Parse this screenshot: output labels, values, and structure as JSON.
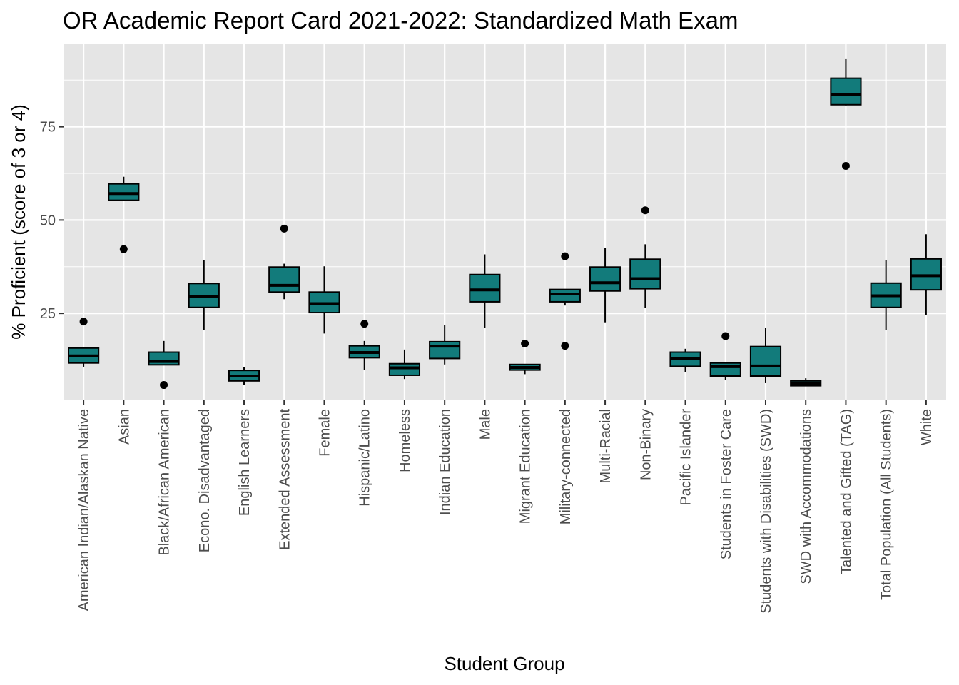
{
  "chart_data": {
    "type": "box",
    "title": "OR Academic Report Card 2021-2022: Standardized Math Exam",
    "xlabel": "Student Group",
    "ylabel": "% Proficient (score of 3 or 4)",
    "ylim": [
      1.7,
      97.3
    ],
    "yticks": [
      25,
      50,
      75
    ],
    "grid": true,
    "fill_color": "#127b7b",
    "panel_color": "#e5e5e5",
    "categories": [
      "American Indian/Alaskan Native",
      "Asian",
      "Black/African American",
      "Econo. Disadvantaged",
      "English Learners",
      "Extended Assessment",
      "Female",
      "Hispanic/Latino",
      "Homeless",
      "Indian Education",
      "Male",
      "Migrant Education",
      "Military-connected",
      "Multi-Racial",
      "Non-Binary",
      "Pacific Islander",
      "Students in Foster Care",
      "Students with Disabilities (SWD)",
      "SWD with Accommodations",
      "Talented and Gifted (TAG)",
      "Total Population (All Students)",
      "White"
    ],
    "boxes": [
      {
        "whisker_low": 10.7,
        "q1": 11.7,
        "median": 13.6,
        "q3": 15.7,
        "whisker_high": 15.7,
        "outliers": [
          22.8
        ]
      },
      {
        "whisker_low": 55.3,
        "q1": 55.3,
        "median": 57.1,
        "q3": 59.7,
        "whisker_high": 61.6,
        "outliers": [
          42.2
        ]
      },
      {
        "whisker_low": 11.2,
        "q1": 11.2,
        "median": 12.1,
        "q3": 14.6,
        "whisker_high": 17.6,
        "outliers": [
          5.8
        ]
      },
      {
        "whisker_low": 20.5,
        "q1": 26.6,
        "median": 29.6,
        "q3": 33.0,
        "whisker_high": 39.2,
        "outliers": []
      },
      {
        "whisker_low": 5.9,
        "q1": 6.9,
        "median": 8.2,
        "q3": 9.7,
        "whisker_high": 10.5,
        "outliers": []
      },
      {
        "whisker_low": 28.8,
        "q1": 30.7,
        "median": 32.5,
        "q3": 37.4,
        "whisker_high": 38.3,
        "outliers": [
          47.7
        ]
      },
      {
        "whisker_low": 19.6,
        "q1": 25.2,
        "median": 27.6,
        "q3": 30.7,
        "whisker_high": 37.6,
        "outliers": []
      },
      {
        "whisker_low": 9.9,
        "q1": 13.1,
        "median": 14.5,
        "q3": 16.3,
        "whisker_high": 17.6,
        "outliers": [
          22.2
        ]
      },
      {
        "whisker_low": 7.4,
        "q1": 8.4,
        "median": 10.4,
        "q3": 11.5,
        "whisker_high": 15.3,
        "outliers": []
      },
      {
        "whisker_low": 11.3,
        "q1": 12.9,
        "median": 16.2,
        "q3": 17.4,
        "whisker_high": 21.8,
        "outliers": []
      },
      {
        "whisker_low": 21.1,
        "q1": 28.1,
        "median": 31.3,
        "q3": 35.4,
        "whisker_high": 40.8,
        "outliers": []
      },
      {
        "whisker_low": 8.7,
        "q1": 9.8,
        "median": 10.5,
        "q3": 11.3,
        "whisker_high": 11.3,
        "outliers": [
          16.9
        ]
      },
      {
        "whisker_low": 27.1,
        "q1": 28.1,
        "median": 30.2,
        "q3": 31.4,
        "whisker_high": 31.4,
        "outliers": [
          40.3,
          16.3
        ]
      },
      {
        "whisker_low": 22.6,
        "q1": 31.0,
        "median": 33.2,
        "q3": 37.4,
        "whisker_high": 42.5,
        "outliers": []
      },
      {
        "whisker_low": 26.5,
        "q1": 31.6,
        "median": 34.3,
        "q3": 39.5,
        "whisker_high": 43.5,
        "outliers": [
          52.6
        ]
      },
      {
        "whisker_low": 9.2,
        "q1": 10.8,
        "median": 12.9,
        "q3": 14.6,
        "whisker_high": 15.5,
        "outliers": []
      },
      {
        "whisker_low": 7.2,
        "q1": 8.2,
        "median": 10.7,
        "q3": 11.7,
        "whisker_high": 11.7,
        "outliers": [
          18.9
        ]
      },
      {
        "whisker_low": 6.3,
        "q1": 8.2,
        "median": 10.9,
        "q3": 16.1,
        "whisker_high": 21.2,
        "outliers": []
      },
      {
        "whisker_low": 5.6,
        "q1": 5.6,
        "median": 6.2,
        "q3": 6.9,
        "whisker_high": 7.6,
        "outliers": []
      },
      {
        "whisker_low": 80.7,
        "q1": 80.9,
        "median": 83.7,
        "q3": 88.0,
        "whisker_high": 93.3,
        "outliers": [
          64.5
        ]
      },
      {
        "whisker_low": 20.5,
        "q1": 26.6,
        "median": 29.7,
        "q3": 33.1,
        "whisker_high": 39.2,
        "outliers": []
      },
      {
        "whisker_low": 24.5,
        "q1": 31.3,
        "median": 35.1,
        "q3": 39.6,
        "whisker_high": 46.2,
        "outliers": []
      }
    ]
  }
}
